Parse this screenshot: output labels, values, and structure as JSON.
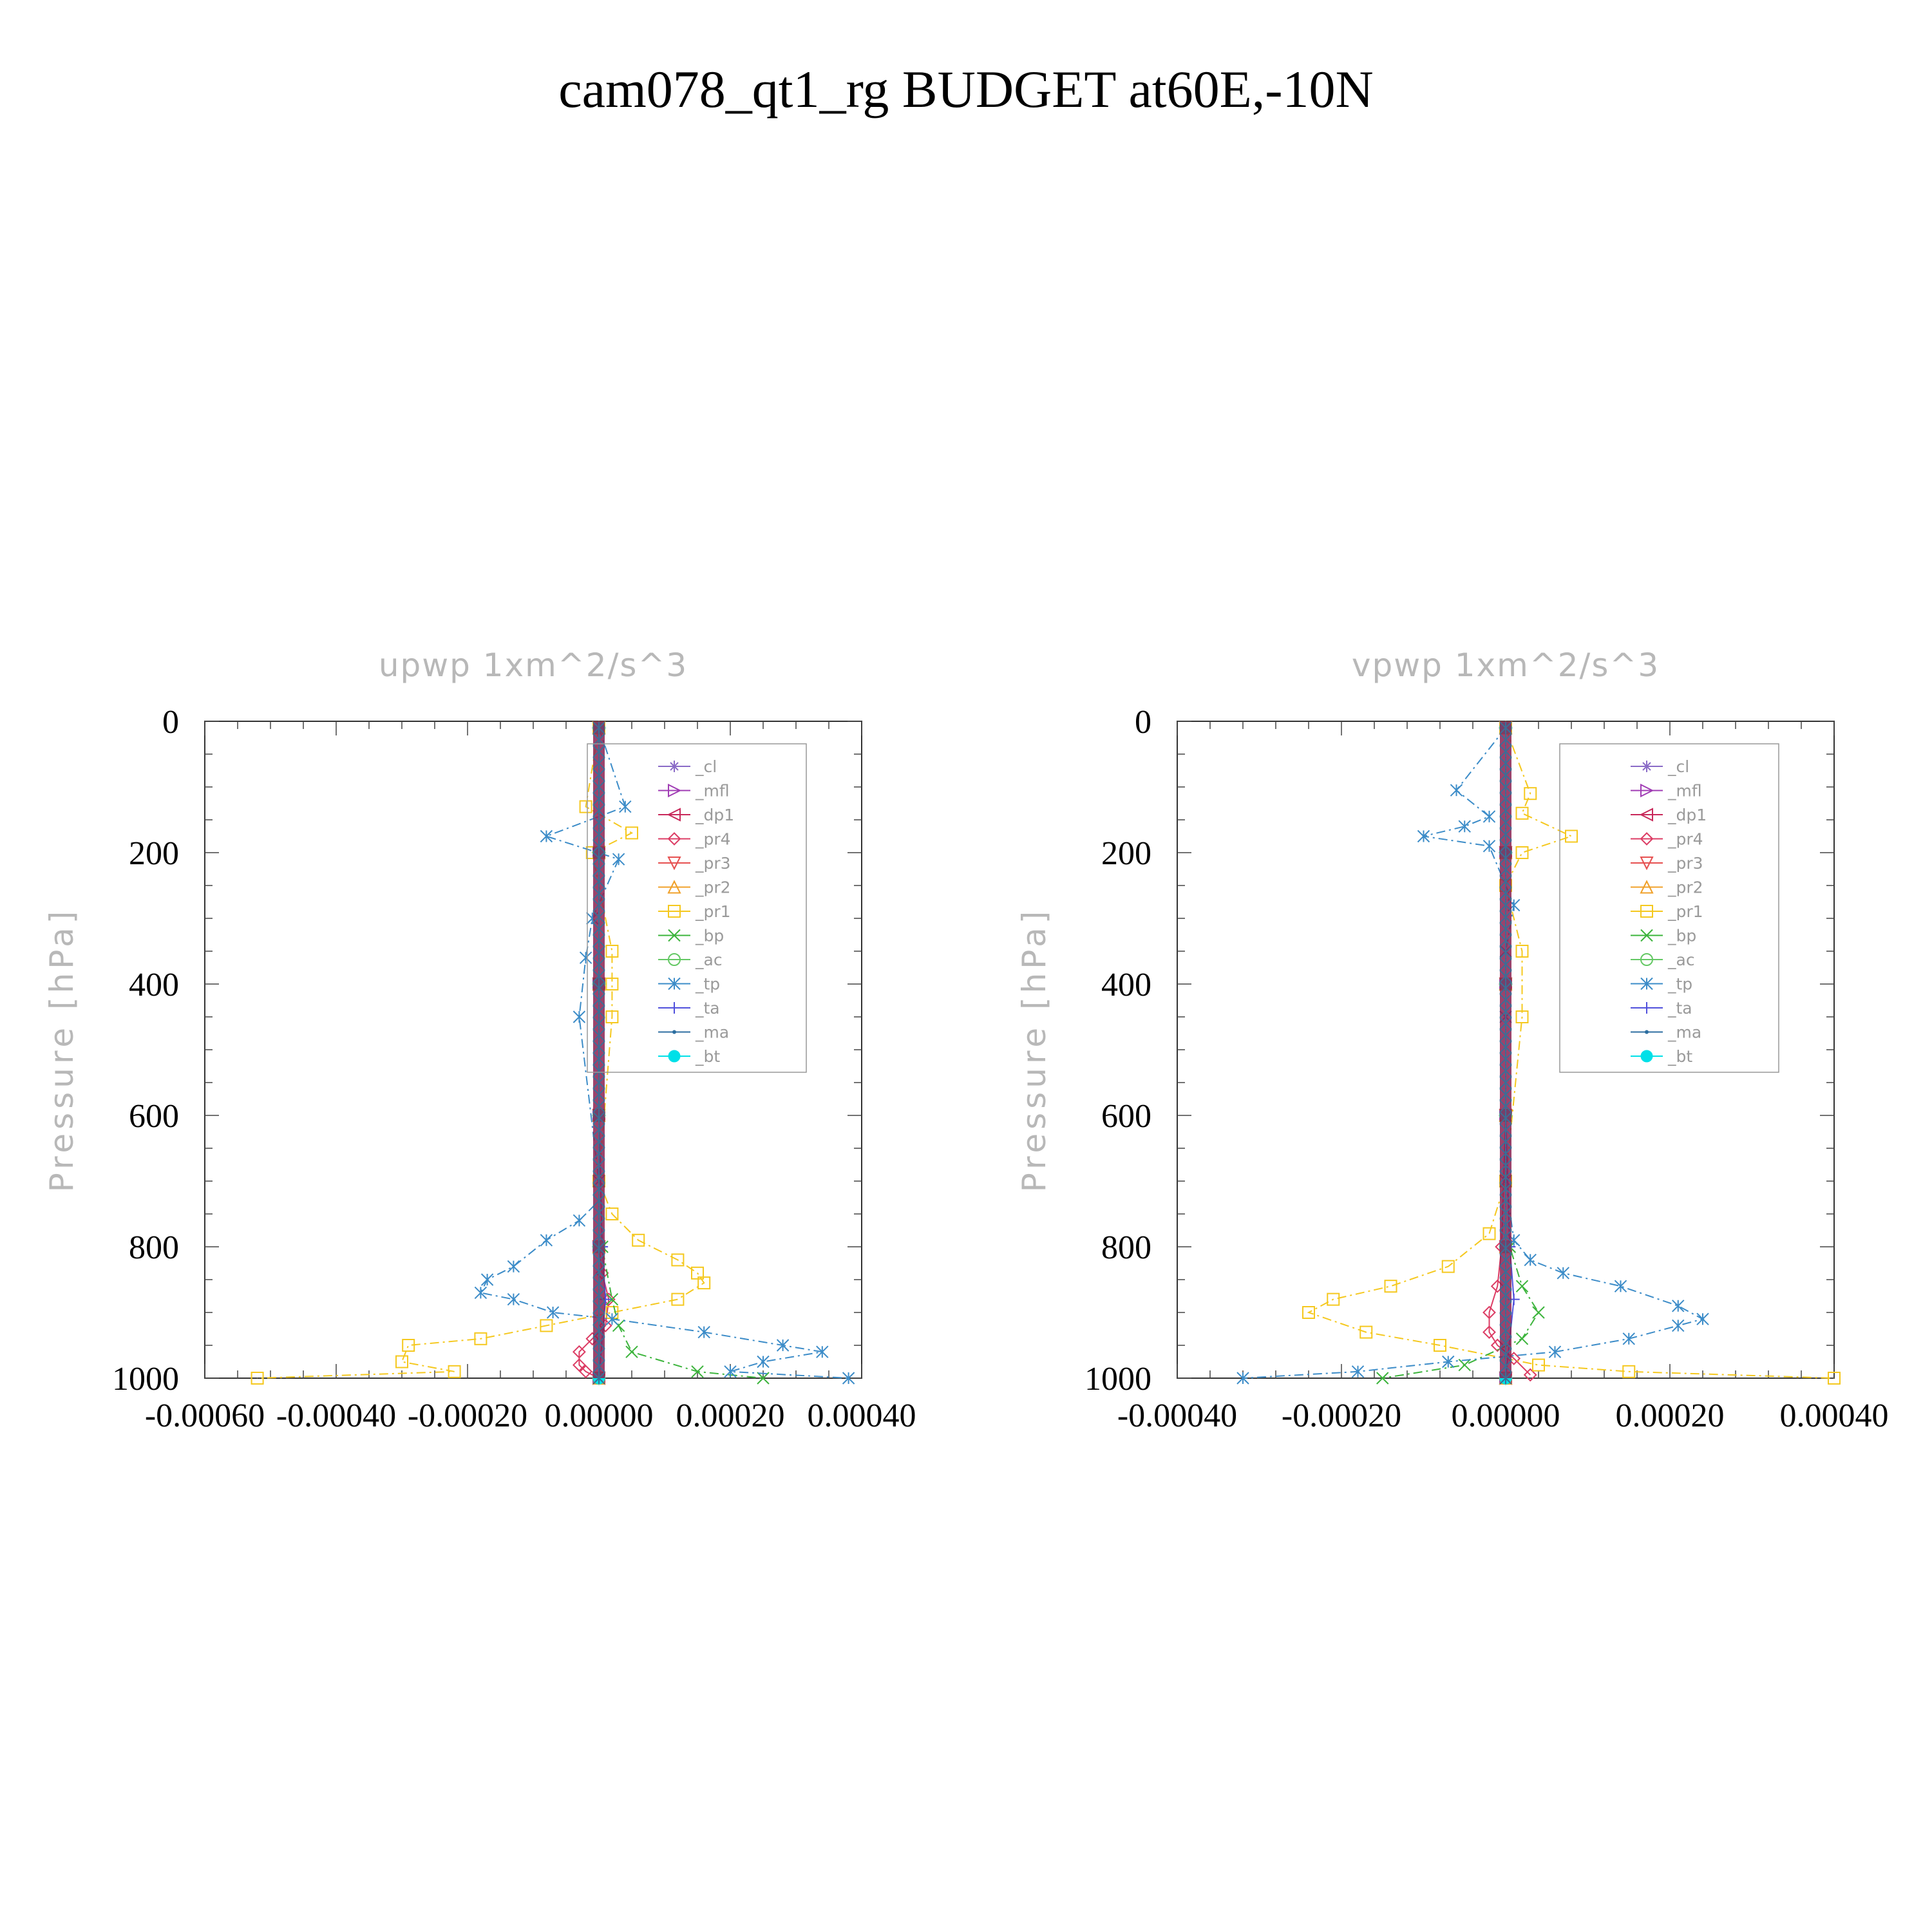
{
  "title": "cam078_qt1_rg  BUDGET at60E,-10N",
  "chart_data": [
    {
      "type": "line",
      "title": "upwp   1xm^2/s^3",
      "xlabel": "",
      "ylabel": "Pressure [hPa]",
      "xlim": [
        -0.0006,
        0.0004
      ],
      "ylim": [
        1000,
        0
      ],
      "xticks": [
        "-0.00060",
        "-0.00040",
        "-0.00020",
        "0.00000",
        "0.00020",
        "0.00040"
      ],
      "yticks": [
        "0",
        "200",
        "400",
        "600",
        "800",
        "1000"
      ],
      "grid": false,
      "legend_position": "top-right",
      "series": [
        {
          "name": "_cl",
          "color": "#8a6bc7",
          "x": [
            0,
            0,
            0,
            0,
            0,
            0
          ],
          "y": [
            10,
            200,
            400,
            600,
            800,
            1000
          ]
        },
        {
          "name": "_mfl",
          "color": "#a03cb4",
          "x": [
            0,
            0,
            0,
            0,
            0,
            0
          ],
          "y": [
            10,
            200,
            400,
            600,
            800,
            1000
          ]
        },
        {
          "name": "_dp1",
          "color": "#c8285a",
          "x": [
            0,
            0,
            0,
            0,
            0,
            0
          ],
          "y": [
            10,
            200,
            400,
            600,
            800,
            1000
          ]
        },
        {
          "name": "_pr4",
          "color": "#dc3c64",
          "x": [
            0,
            0,
            0,
            0,
            0,
            5e-06,
            1.5e-05,
            1e-05,
            -1e-05,
            -3e-05,
            -3e-05,
            -2e-05,
            0
          ],
          "y": [
            10,
            200,
            400,
            600,
            800,
            840,
            880,
            920,
            940,
            960,
            980,
            990,
            1000
          ]
        },
        {
          "name": "_pr3",
          "color": "#e65050",
          "x": [
            0,
            0,
            0,
            0,
            0,
            0
          ],
          "y": [
            10,
            200,
            400,
            600,
            800,
            1000
          ]
        },
        {
          "name": "_pr2",
          "color": "#f0a028",
          "x": [
            0,
            0,
            0,
            0,
            0,
            0
          ],
          "y": [
            10,
            200,
            400,
            600,
            800,
            1000
          ]
        },
        {
          "name": "_pr1",
          "color": "#f5c81e",
          "x": [
            0,
            -2e-05,
            5e-05,
            -1e-05,
            2e-05,
            2e-05,
            2e-05,
            0,
            2e-05,
            6e-05,
            0.00012,
            0.00015,
            0.00016,
            0.00012,
            2e-05,
            -8e-05,
            -0.00018,
            -0.00029,
            -0.0003,
            -0.00022,
            -0.00052
          ],
          "y": [
            10,
            130,
            170,
            200,
            350,
            400,
            450,
            700,
            750,
            790,
            820,
            840,
            855,
            880,
            900,
            920,
            940,
            950,
            975,
            990,
            1000
          ]
        },
        {
          "name": "_bp",
          "color": "#3cb43c",
          "x": [
            0,
            0,
            0,
            0,
            5e-06,
            2e-05,
            3e-05,
            5e-05,
            0.00015,
            0.00025
          ],
          "y": [
            10,
            200,
            400,
            600,
            800,
            880,
            920,
            960,
            990,
            1000
          ]
        },
        {
          "name": "_ac",
          "color": "#64c864",
          "x": [
            0,
            0,
            0,
            0,
            0,
            0
          ],
          "y": [
            10,
            200,
            400,
            600,
            800,
            1000
          ]
        },
        {
          "name": "_tp",
          "color": "#3c8cc8",
          "x": [
            0,
            4e-05,
            -8e-05,
            3e-05,
            -1e-05,
            -2e-05,
            -3e-05,
            0,
            0,
            -3e-05,
            -8e-05,
            -0.00013,
            -0.00017,
            -0.00018,
            -0.00013,
            -7e-05,
            2e-05,
            0.00016,
            0.00028,
            0.00034,
            0.00025,
            0.0002,
            0.00038
          ],
          "y": [
            10,
            130,
            175,
            210,
            300,
            360,
            450,
            700,
            730,
            760,
            790,
            830,
            850,
            870,
            880,
            900,
            910,
            930,
            950,
            960,
            975,
            990,
            1000
          ]
        },
        {
          "name": "_ta",
          "color": "#5050dc",
          "x": [
            0,
            0,
            0,
            0,
            5e-06,
            1e-05,
            0
          ],
          "y": [
            10,
            200,
            400,
            600,
            800,
            880,
            1000
          ]
        },
        {
          "name": "_ma",
          "color": "#2c6ea0",
          "x": [
            0,
            0,
            0,
            0,
            0,
            0
          ],
          "y": [
            10,
            200,
            400,
            600,
            800,
            1000
          ]
        },
        {
          "name": "_bt",
          "color": "#00e0e8",
          "x": [
            0,
            0,
            0,
            0,
            0,
            0
          ],
          "y": [
            10,
            200,
            400,
            600,
            800,
            1000
          ]
        }
      ]
    },
    {
      "type": "line",
      "title": "vpwp   1xm^2/s^3",
      "xlabel": "",
      "ylabel": "Pressure [hPa]",
      "xlim": [
        -0.0004,
        0.0004
      ],
      "ylim": [
        1000,
        0
      ],
      "xticks": [
        "-0.00040",
        "-0.00020",
        "0.00000",
        "0.00020",
        "0.00040"
      ],
      "yticks": [
        "0",
        "200",
        "400",
        "600",
        "800",
        "1000"
      ],
      "grid": false,
      "legend_position": "top-right",
      "series": [
        {
          "name": "_cl",
          "color": "#8a6bc7",
          "x": [
            0,
            0,
            0,
            0,
            0,
            0
          ],
          "y": [
            10,
            200,
            400,
            600,
            800,
            1000
          ]
        },
        {
          "name": "_mfl",
          "color": "#a03cb4",
          "x": [
            0,
            0,
            0,
            0,
            0,
            0
          ],
          "y": [
            10,
            200,
            400,
            600,
            800,
            1000
          ]
        },
        {
          "name": "_dp1",
          "color": "#c8285a",
          "x": [
            0,
            0,
            0,
            0,
            0,
            0
          ],
          "y": [
            10,
            200,
            400,
            600,
            800,
            1000
          ]
        },
        {
          "name": "_pr4",
          "color": "#dc3c64",
          "x": [
            0,
            0,
            0,
            0,
            -5e-06,
            -1e-05,
            -2e-05,
            -2e-05,
            -1e-05,
            1e-05,
            3e-05
          ],
          "y": [
            10,
            200,
            400,
            600,
            800,
            860,
            900,
            930,
            950,
            970,
            995
          ]
        },
        {
          "name": "_pr3",
          "color": "#e65050",
          "x": [
            0,
            0,
            0,
            0,
            0,
            0
          ],
          "y": [
            10,
            200,
            400,
            600,
            800,
            1000
          ]
        },
        {
          "name": "_pr2",
          "color": "#f0a028",
          "x": [
            0,
            0,
            0,
            0,
            0,
            0
          ],
          "y": [
            10,
            200,
            400,
            600,
            800,
            1000
          ]
        },
        {
          "name": "_pr1",
          "color": "#f5c81e",
          "x": [
            0,
            3e-05,
            2e-05,
            8e-05,
            2e-05,
            0,
            2e-05,
            2e-05,
            0,
            -2e-05,
            -7e-05,
            -0.00014,
            -0.00021,
            -0.00024,
            -0.00017,
            -8e-05,
            4e-05,
            0.00015,
            0.0004
          ],
          "y": [
            10,
            110,
            140,
            175,
            200,
            250,
            350,
            450,
            700,
            780,
            830,
            860,
            880,
            900,
            930,
            950,
            980,
            990,
            1000
          ]
        },
        {
          "name": "_bp",
          "color": "#3cb43c",
          "x": [
            0,
            0,
            0,
            0,
            5e-06,
            2e-05,
            4e-05,
            2e-05,
            -5e-05,
            -0.00015
          ],
          "y": [
            10,
            200,
            400,
            600,
            800,
            860,
            900,
            940,
            980,
            1000
          ]
        },
        {
          "name": "_ac",
          "color": "#64c864",
          "x": [
            0,
            0,
            0,
            0,
            0,
            0
          ],
          "y": [
            10,
            200,
            400,
            600,
            800,
            1000
          ]
        },
        {
          "name": "_tp",
          "color": "#3c8cc8",
          "x": [
            0,
            -6e-05,
            -2e-05,
            -5e-05,
            -0.0001,
            -2e-05,
            1e-05,
            0,
            0,
            0,
            1e-05,
            3e-05,
            7e-05,
            0.00014,
            0.00021,
            0.00024,
            0.00021,
            0.00015,
            6e-05,
            -7e-05,
            -0.00018,
            -0.00032
          ],
          "y": [
            10,
            105,
            145,
            160,
            175,
            190,
            280,
            350,
            450,
            700,
            790,
            820,
            840,
            860,
            890,
            910,
            920,
            940,
            960,
            975,
            990,
            1000
          ]
        },
        {
          "name": "_ta",
          "color": "#5050dc",
          "x": [
            0,
            0,
            0,
            0,
            5e-06,
            1e-05,
            0
          ],
          "y": [
            10,
            200,
            400,
            600,
            800,
            880,
            1000
          ]
        },
        {
          "name": "_ma",
          "color": "#2c6ea0",
          "x": [
            0,
            0,
            0,
            0,
            0,
            0
          ],
          "y": [
            10,
            200,
            400,
            600,
            800,
            1000
          ]
        },
        {
          "name": "_bt",
          "color": "#00e0e8",
          "x": [
            0,
            0,
            0,
            0,
            0,
            0
          ],
          "y": [
            10,
            200,
            400,
            600,
            800,
            1000
          ]
        }
      ]
    }
  ]
}
